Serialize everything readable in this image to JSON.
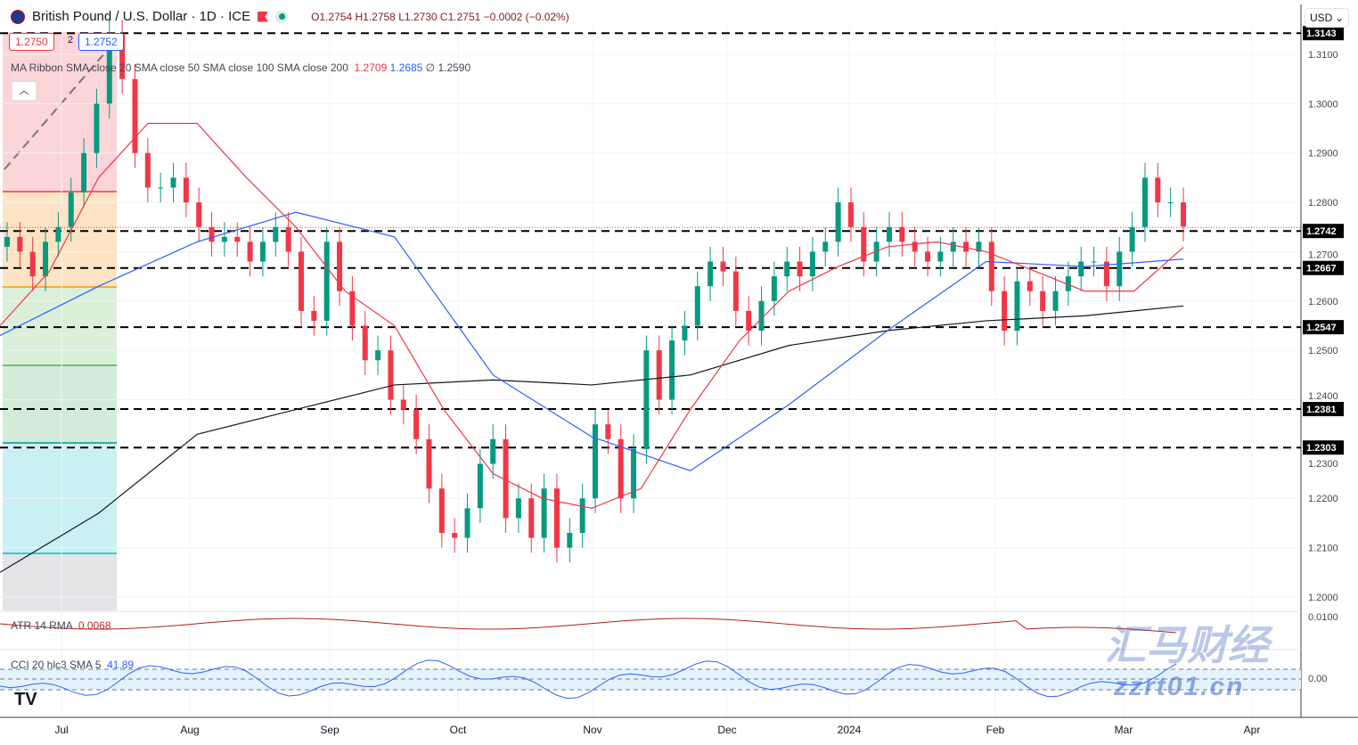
{
  "header": {
    "title": "British Pound / U.S. Dollar · 1D · ICE",
    "open": "O1.2754",
    "high": "H1.2758",
    "low": "L1.2730",
    "close": "C1.2751",
    "change": "−0.0002 (−0.02%)"
  },
  "price_boxes": {
    "bid": "1.2750",
    "spread": "2",
    "ask": "1.2752"
  },
  "legend": {
    "label": "MA Ribbon SMA close 20 SMA close 50 SMA close 100 SMA close 200",
    "v1": "1.2709",
    "v2": "1.2685",
    "v3": "∅",
    "v4": "1.2590"
  },
  "currency": "USD",
  "atr": {
    "label": "ATR 14 RMA",
    "value": "0.0068",
    "axis": "0.0100"
  },
  "cci": {
    "label": "CCI 20 hlc3 SMA 5",
    "value": "41.89",
    "axis": "0.00"
  },
  "watermark": {
    "cn": "汇马财经",
    "url": "zzrt01.cn"
  },
  "colors": {
    "up": "#089981",
    "down": "#f23645",
    "sma20": "#f23645",
    "sma50": "#2962ff",
    "sma200": "#131722"
  },
  "chart_data": {
    "type": "candlestick",
    "x_ticks": [
      "Jul",
      "Aug",
      "Sep",
      "Oct",
      "Nov",
      "Dec",
      "2024",
      "Feb",
      "Mar",
      "Apr"
    ],
    "y_ticks": [
      "1.3100",
      "1.3000",
      "1.2900",
      "1.2800",
      "1.2700",
      "1.2600",
      "1.2500",
      "1.2400",
      "1.2300",
      "1.2200",
      "1.2100",
      "1.2000"
    ],
    "levels": [
      "1.3143",
      "1.2742",
      "1.2667",
      "1.2547",
      "1.2381",
      "1.2303"
    ],
    "ylim": [
      1.2,
      1.31
    ],
    "closes": [
      1.273,
      1.27,
      1.265,
      1.272,
      1.275,
      1.282,
      1.29,
      1.3,
      1.314,
      1.305,
      1.29,
      1.283,
      1.283,
      1.285,
      1.28,
      1.275,
      1.272,
      1.273,
      1.272,
      1.268,
      1.272,
      1.275,
      1.27,
      1.258,
      1.256,
      1.272,
      1.262,
      1.255,
      1.248,
      1.25,
      1.24,
      1.238,
      1.232,
      1.222,
      1.213,
      1.212,
      1.218,
      1.227,
      1.232,
      1.216,
      1.22,
      1.212,
      1.222,
      1.21,
      1.213,
      1.22,
      1.235,
      1.232,
      1.22,
      1.23,
      1.25,
      1.24,
      1.252,
      1.255,
      1.263,
      1.268,
      1.266,
      1.258,
      1.254,
      1.26,
      1.265,
      1.268,
      1.265,
      1.27,
      1.272,
      1.28,
      1.275,
      1.268,
      1.272,
      1.275,
      1.272,
      1.27,
      1.268,
      1.27,
      1.272,
      1.27,
      1.272,
      1.262,
      1.254,
      1.264,
      1.262,
      1.258,
      1.262,
      1.265,
      1.268,
      1.268,
      1.263,
      1.27,
      1.275,
      1.285,
      1.28,
      1.28,
      1.2751
    ],
    "sma20": [
      1.255,
      1.266,
      1.285,
      1.296,
      1.296,
      1.285,
      1.275,
      1.262,
      1.255,
      1.238,
      1.225,
      1.22,
      1.218,
      1.222,
      1.238,
      1.252,
      1.262,
      1.267,
      1.271,
      1.272,
      1.27,
      1.266,
      1.262,
      1.262,
      1.2709
    ],
    "sma50": [
      1.253,
      1.263,
      1.272,
      1.278,
      1.273,
      1.245,
      1.2325,
      1.2256,
      1.239,
      1.254,
      1.268,
      1.267,
      1.2685
    ],
    "sma200": [
      1.205,
      1.217,
      1.233,
      1.238,
      1.243,
      1.244,
      1.243,
      1.245,
      1.251,
      1.254,
      1.256,
      1.257,
      1.259
    ]
  }
}
